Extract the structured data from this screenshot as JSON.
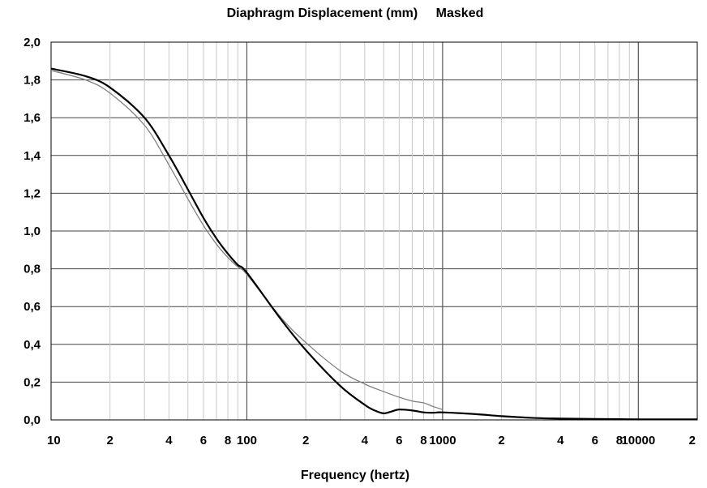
{
  "chart_data": {
    "type": "line",
    "title": "Diaphragm Displacement (mm)",
    "subtitle": "Masked",
    "xlabel": "Frequency (hertz)",
    "ylabel": "",
    "xscale": "log",
    "xlim": [
      10,
      20000
    ],
    "ylim": [
      0,
      2.0
    ],
    "grid": true,
    "y_ticks": [
      {
        "v": 0.0,
        "label": "0,0"
      },
      {
        "v": 0.2,
        "label": "0,2"
      },
      {
        "v": 0.4,
        "label": "0,4"
      },
      {
        "v": 0.6,
        "label": "0,6"
      },
      {
        "v": 0.8,
        "label": "0,8"
      },
      {
        "v": 1.0,
        "label": "1,0"
      },
      {
        "v": 1.2,
        "label": "1,2"
      },
      {
        "v": 1.4,
        "label": "1,4"
      },
      {
        "v": 1.6,
        "label": "1,6"
      },
      {
        "v": 1.8,
        "label": "1,8"
      },
      {
        "v": 2.0,
        "label": "2,0"
      }
    ],
    "x_ticks": [
      {
        "v": 10,
        "label": "10"
      },
      {
        "v": 20,
        "label": "2"
      },
      {
        "v": 40,
        "label": "4"
      },
      {
        "v": 60,
        "label": "6"
      },
      {
        "v": 80,
        "label": "8"
      },
      {
        "v": 100,
        "label": "100"
      },
      {
        "v": 200,
        "label": "2"
      },
      {
        "v": 400,
        "label": "4"
      },
      {
        "v": 600,
        "label": "6"
      },
      {
        "v": 800,
        "label": "8"
      },
      {
        "v": 1000,
        "label": "1000"
      },
      {
        "v": 2000,
        "label": "2"
      },
      {
        "v": 4000,
        "label": "4"
      },
      {
        "v": 6000,
        "label": "6"
      },
      {
        "v": 8000,
        "label": "8"
      },
      {
        "v": 10000,
        "label": "10000"
      },
      {
        "v": 20000,
        "label": "2"
      }
    ],
    "series": [
      {
        "color": "#000000",
        "x": [
          10,
          15,
          20,
          30,
          40,
          50,
          60,
          70,
          80,
          90,
          100,
          150,
          200,
          300,
          400,
          450,
          500,
          550,
          600,
          700,
          800,
          900,
          1000,
          1500,
          2000,
          3000,
          4000,
          6000,
          8000,
          10000,
          15000,
          20000
        ],
        "y": [
          1.86,
          1.82,
          1.76,
          1.6,
          1.4,
          1.22,
          1.07,
          0.96,
          0.88,
          0.82,
          0.78,
          0.53,
          0.37,
          0.18,
          0.08,
          0.05,
          0.035,
          0.045,
          0.055,
          0.05,
          0.04,
          0.038,
          0.04,
          0.03,
          0.02,
          0.01,
          0.007,
          0.005,
          0.004,
          0.003,
          0.003,
          0.003
        ]
      },
      {
        "color": "#808080",
        "x": [
          10,
          15,
          20,
          30,
          40,
          50,
          60,
          70,
          80,
          90,
          100,
          150,
          200,
          300,
          400,
          500,
          600,
          700,
          800,
          900,
          1000
        ],
        "y": [
          1.85,
          1.8,
          1.73,
          1.56,
          1.35,
          1.17,
          1.03,
          0.93,
          0.86,
          0.81,
          0.77,
          0.54,
          0.41,
          0.26,
          0.19,
          0.15,
          0.12,
          0.1,
          0.09,
          0.07,
          0.055
        ]
      }
    ]
  }
}
